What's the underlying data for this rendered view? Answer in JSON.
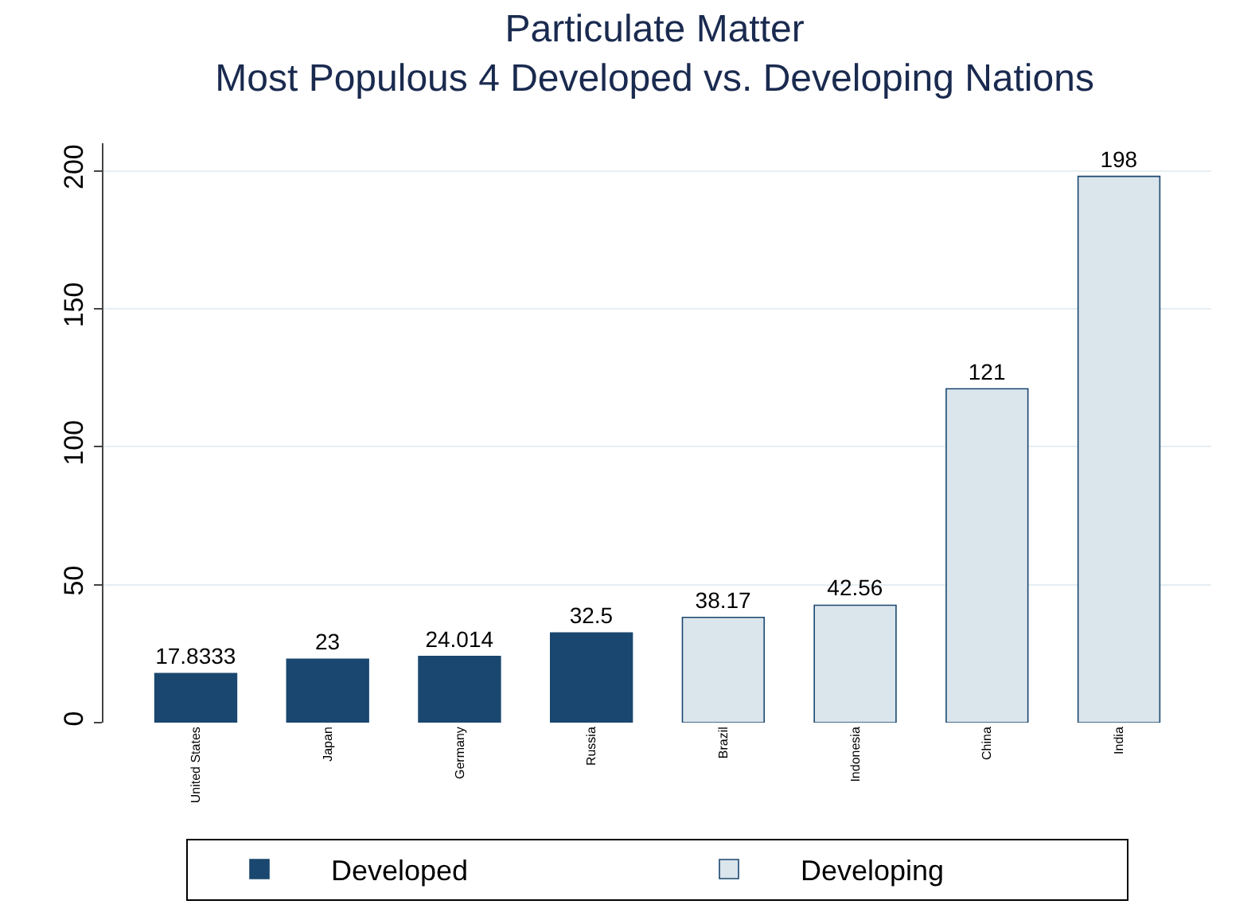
{
  "chart_data": {
    "type": "bar",
    "title": "Particulate Matter\nMost Populous 4 Developed vs. Developing Nations",
    "categories": [
      "United States",
      "Japan",
      "Germany",
      "Russia",
      "Brazil",
      "Indonesia",
      "China",
      "India"
    ],
    "series": [
      {
        "name": "Developed",
        "color": "#1a476f",
        "values": [
          17.8333,
          23,
          24.014,
          32.5,
          null,
          null,
          null,
          null
        ],
        "value_labels": [
          "17.8333",
          "23",
          "24.014",
          "32.5",
          null,
          null,
          null,
          null
        ]
      },
      {
        "name": "Developing",
        "color": "#dae5ec",
        "values": [
          null,
          null,
          null,
          null,
          38.17,
          42.56,
          121,
          198
        ],
        "value_labels": [
          null,
          null,
          null,
          null,
          "38.17",
          "42.56",
          "121",
          "198"
        ]
      }
    ],
    "ylim": [
      0,
      210
    ],
    "yticks": [
      0,
      50,
      100,
      150,
      200
    ],
    "grid": "y",
    "legend": "bottom"
  }
}
